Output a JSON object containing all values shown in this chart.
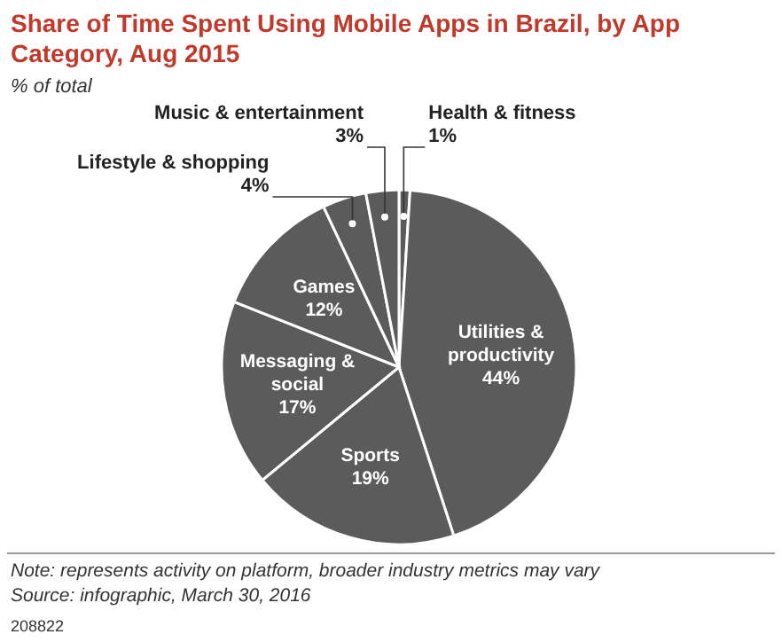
{
  "chart_data": {
    "type": "pie",
    "title": "Share of Time Spent Using Mobile Apps in Brazil, by App Category, Aug 2015",
    "subtitle": "% of total",
    "categories": [
      "Health & fitness",
      "Utilities & productivity",
      "Sports",
      "Messaging & social",
      "Games",
      "Lifestyle & shopping",
      "Music & entertainment"
    ],
    "values": [
      1,
      44,
      19,
      17,
      12,
      4,
      3
    ],
    "colors": [
      "#5b5b5b",
      "#5b5b5b",
      "#5b5b5b",
      "#5b5b5b",
      "#5b5b5b",
      "#5b5b5b",
      "#5b5b5b"
    ],
    "value_labels": [
      "1%",
      "44%",
      "19%",
      "17%",
      "12%",
      "4%",
      "3%"
    ],
    "annotations": [
      "Note: represents activity on platform, broader industry metrics may vary",
      "Source: infographic, March 30, 2016",
      "208822"
    ]
  }
}
